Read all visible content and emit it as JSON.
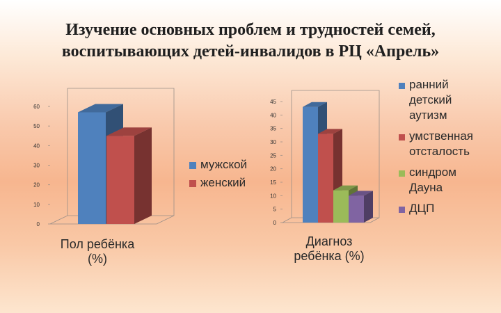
{
  "title": {
    "line1": "Изучение основных проблем и трудностей семей,",
    "line2": "воспитывающих детей-инвалидов в РЦ «Апрель»"
  },
  "colors": {
    "blue": "#4f81bd",
    "red": "#c0504d",
    "green": "#9bbb59",
    "purple": "#8064a2"
  },
  "chart_data": [
    {
      "type": "bar",
      "series": [
        {
          "name": "мужской",
          "value": 57,
          "color": "#4f81bd"
        },
        {
          "name": "женский",
          "value": 45,
          "color": "#c0504d"
        }
      ],
      "ylim": [
        0,
        60
      ],
      "yticks": [
        0,
        10,
        20,
        30,
        40,
        50,
        60
      ],
      "caption_lines": [
        "Пол ребёнка",
        "(%)"
      ],
      "legend_lines": [
        [
          "мужской"
        ],
        [
          "женский"
        ]
      ],
      "grid": false,
      "legend_position": "right"
    },
    {
      "type": "bar",
      "series": [
        {
          "name": "ранний детский аутизм",
          "value": 43,
          "color": "#4f81bd"
        },
        {
          "name": "умственная отсталость",
          "value": 33,
          "color": "#c0504d"
        },
        {
          "name": "синдром Дауна",
          "value": 12,
          "color": "#9bbb59"
        },
        {
          "name": "ДЦП",
          "value": 10,
          "color": "#8064a2"
        }
      ],
      "ylim": [
        0,
        45
      ],
      "yticks": [
        0,
        5,
        10,
        15,
        20,
        25,
        30,
        35,
        40,
        45
      ],
      "caption_lines": [
        "Диагноз",
        "ребёнка (%)"
      ],
      "legend_lines": [
        [
          "ранний",
          "детский",
          "аутизм"
        ],
        [
          "умственная",
          "отсталость"
        ],
        [
          "синдром",
          "Дауна"
        ],
        [
          "ДЦП"
        ]
      ],
      "grid": false,
      "legend_position": "right"
    }
  ]
}
